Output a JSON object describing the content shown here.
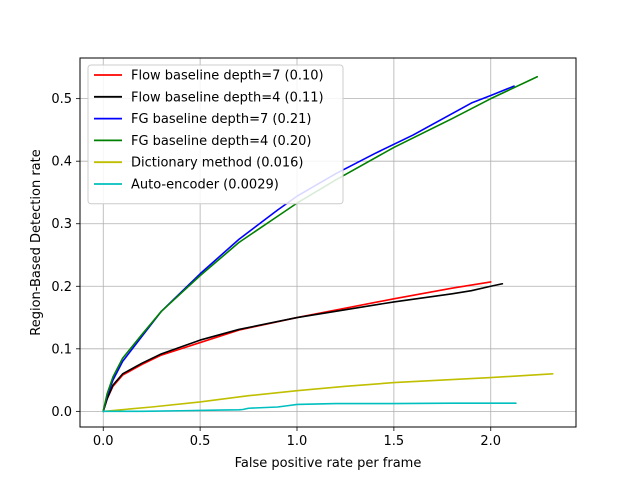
{
  "chart_data": {
    "type": "line",
    "title": "",
    "xlabel": "False positive rate per frame",
    "ylabel": "Region-Based Detection rate",
    "xlim": [
      -0.12,
      2.44
    ],
    "ylim": [
      -0.025,
      0.565
    ],
    "xticks": [
      0.0,
      0.5,
      1.0,
      1.5,
      2.0
    ],
    "xtick_labels": [
      "0.0",
      "0.5",
      "1.0",
      "1.5",
      "2.0"
    ],
    "yticks": [
      0.0,
      0.1,
      0.2,
      0.3,
      0.4,
      0.5
    ],
    "ytick_labels": [
      "0.0",
      "0.1",
      "0.2",
      "0.3",
      "0.4",
      "0.5"
    ],
    "grid": true,
    "legend_position": "top-left",
    "series": [
      {
        "name": "Flow baseline depth=7 (0.10)",
        "color": "#ff0000",
        "x": [
          0.0,
          0.02,
          0.05,
          0.1,
          0.2,
          0.3,
          0.5,
          0.7,
          1.0,
          1.2,
          1.5,
          1.8,
          2.0
        ],
        "y": [
          0.0,
          0.02,
          0.04,
          0.058,
          0.075,
          0.09,
          0.11,
          0.13,
          0.15,
          0.162,
          0.18,
          0.197,
          0.207
        ]
      },
      {
        "name": "Flow baseline depth=4 (0.11)",
        "color": "#000000",
        "x": [
          0.0,
          0.02,
          0.05,
          0.1,
          0.2,
          0.3,
          0.5,
          0.7,
          1.0,
          1.2,
          1.5,
          1.8,
          1.9,
          2.0,
          2.06
        ],
        "y": [
          0.0,
          0.02,
          0.042,
          0.06,
          0.077,
          0.092,
          0.114,
          0.131,
          0.15,
          0.16,
          0.175,
          0.188,
          0.193,
          0.2,
          0.204
        ]
      },
      {
        "name": "FG baseline depth=7 (0.21)",
        "color": "#0000ff",
        "x": [
          0.0,
          0.02,
          0.05,
          0.1,
          0.2,
          0.3,
          0.5,
          0.7,
          0.9,
          1.0,
          1.2,
          1.4,
          1.6,
          1.9,
          2.0,
          2.12
        ],
        "y": [
          0.0,
          0.025,
          0.05,
          0.08,
          0.12,
          0.16,
          0.22,
          0.275,
          0.322,
          0.344,
          0.38,
          0.412,
          0.442,
          0.493,
          0.505,
          0.52
        ]
      },
      {
        "name": "FG baseline depth=4 (0.20)",
        "color": "#008000",
        "x": [
          0.0,
          0.02,
          0.05,
          0.1,
          0.2,
          0.3,
          0.5,
          0.7,
          0.9,
          1.0,
          1.2,
          1.5,
          1.8,
          2.0,
          2.24
        ],
        "y": [
          0.0,
          0.028,
          0.055,
          0.085,
          0.123,
          0.16,
          0.217,
          0.27,
          0.312,
          0.333,
          0.37,
          0.422,
          0.468,
          0.5,
          0.535
        ]
      },
      {
        "name": "Dictionary method (0.016)",
        "color": "#bfbf00",
        "x": [
          0.0,
          0.25,
          0.5,
          0.75,
          1.0,
          1.25,
          1.5,
          1.75,
          2.0,
          2.32
        ],
        "y": [
          0.0,
          0.007,
          0.015,
          0.025,
          0.033,
          0.04,
          0.046,
          0.05,
          0.054,
          0.06
        ]
      },
      {
        "name": "Auto-encoder (0.0029)",
        "color": "#00bfbf",
        "x": [
          0.0,
          0.2,
          0.4,
          0.6,
          0.7,
          0.72,
          0.75,
          0.9,
          0.95,
          1.0,
          1.2,
          1.5,
          1.8,
          2.0,
          2.13
        ],
        "y": [
          0.0,
          0.0,
          0.001,
          0.002,
          0.0025,
          0.003,
          0.005,
          0.007,
          0.009,
          0.011,
          0.0125,
          0.0125,
          0.013,
          0.013,
          0.013
        ]
      }
    ]
  }
}
